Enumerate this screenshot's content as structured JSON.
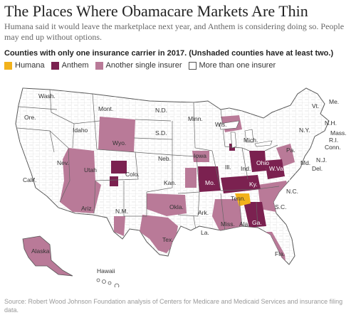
{
  "headline": "The Places Where Obamacare Markets Are Thin",
  "dek": "Humana said it would leave the marketplace next year, and Anthem is considering doing so. People may end up without options.",
  "map_title": "Counties with only one insurance carrier in 2017. (Unshaded counties have at least two.)",
  "legend": [
    {
      "label": "Humana",
      "color": "#f2b21b"
    },
    {
      "label": "Anthem",
      "color": "#7b2150"
    },
    {
      "label": "Another single insurer",
      "color": "#b97a98"
    },
    {
      "label": "More than one insurer",
      "color": "#ffffff"
    }
  ],
  "colors": {
    "humana": "#f2b21b",
    "anthem": "#7b2150",
    "other": "#b97a98",
    "border": "#555555",
    "county_line": "#cccccc"
  },
  "state_labels": {
    "wash": "Wash.",
    "ore": "Ore.",
    "calif": "Calif.",
    "nev": "Nev.",
    "idaho": "Idaho",
    "mont": "Mont.",
    "wyo": "Wyo.",
    "utah": "Utah",
    "ariz": "Ariz.",
    "colo": "Colo.",
    "nm": "N.M.",
    "nd": "N.D.",
    "sd": "S.D.",
    "neb": "Neb.",
    "kan": "Kan.",
    "okla": "Okla.",
    "tex": "Tex.",
    "minn": "Minn.",
    "iowa": "Iowa",
    "mo": "Mo.",
    "ark": "Ark.",
    "la": "La.",
    "wis": "Wis.",
    "ill": "Ill.",
    "mich": "Mich.",
    "ind": "Ind.",
    "ohio": "Ohio",
    "ky": "Ky.",
    "tenn": "Tenn.",
    "miss": "Miss.",
    "ala": "Ala.",
    "ga": "Ga.",
    "fla": "Fla.",
    "sc": "S.C.",
    "nc": "N.C.",
    "va": "Va.",
    "wva": "W.Va.",
    "pa": "Pa.",
    "ny": "N.Y.",
    "md": "Md.",
    "del": "Del.",
    "nj": "N.J.",
    "conn": "Conn.",
    "ri": "R.I.",
    "mass": "Mass.",
    "vt": "Vt.",
    "nh": "N.H.",
    "me": "Me.",
    "alaska": "Alaska",
    "hawaii": "Hawaii"
  },
  "source": "Source: Robert Wood Johnson Foundation analysis of Centers for Medicare and Medicaid Services and insurance filing data."
}
